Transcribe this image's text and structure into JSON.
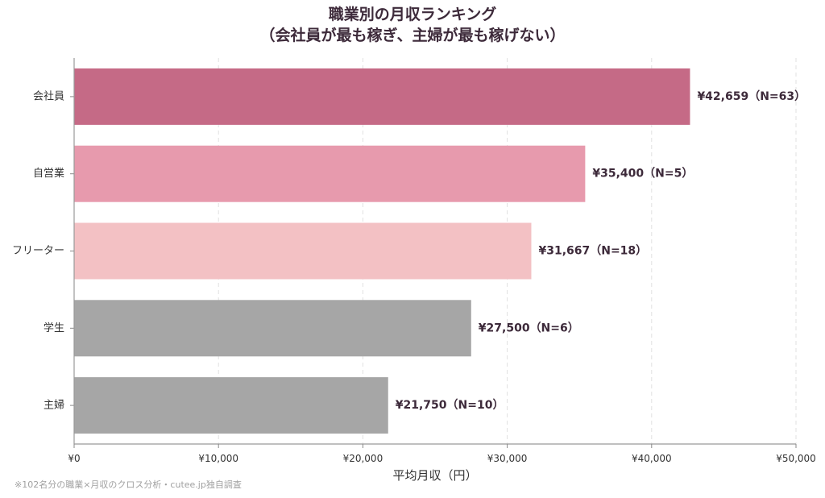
{
  "chart_data": {
    "type": "bar",
    "orientation": "horizontal",
    "title": "職業別の月収ランキング",
    "subtitle": "（会社員が最も稼ぎ、主婦が最も稼げない）",
    "xlabel": "平均月収（円）",
    "ylabel": "",
    "xlim": [
      0,
      50000
    ],
    "x_ticks": [
      "¥0",
      "¥10,000",
      "¥20,000",
      "¥30,000",
      "¥40,000",
      "¥50,000"
    ],
    "x_tick_values": [
      0,
      10000,
      20000,
      30000,
      40000,
      50000
    ],
    "grid": "vertical dashed",
    "categories": [
      "会社員",
      "自営業",
      "フリーター",
      "学生",
      "主婦"
    ],
    "values": [
      42659,
      35400,
      31667,
      27500,
      21750
    ],
    "data_labels": [
      "¥42,659（N=63）",
      "¥35,400（N=5）",
      "¥31,667（N=18）",
      "¥27,500（N=6）",
      "¥21,750（N=10）"
    ],
    "colors": [
      "#c56a86",
      "#e79aad",
      "#f3c1c4",
      "#a6a6a6",
      "#a6a6a6"
    ]
  },
  "footnote": "※102名分の職業×月収のクロス分析・cutee.jp独自調査"
}
